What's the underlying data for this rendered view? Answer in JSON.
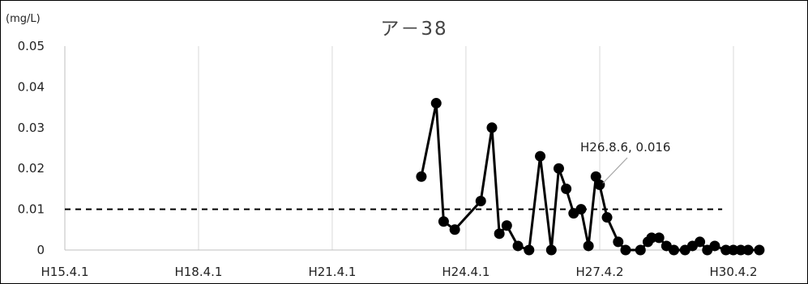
{
  "chart_data": {
    "type": "line",
    "title": "ア－38",
    "unit_label": "(mg/L)",
    "xlabel": "",
    "ylabel": "",
    "ylim": [
      0,
      0.05
    ],
    "y_ticks": [
      "0",
      "0.01",
      "0.02",
      "0.03",
      "0.04",
      "0.05"
    ],
    "xlim": [
      "H15.4.1",
      "H30.4.2"
    ],
    "x_ticks": [
      "H15.4.1",
      "H18.4.1",
      "H21.4.1",
      "H24.4.1",
      "H27.4.2",
      "H30.4.2"
    ],
    "grid": "vertical",
    "reference_line": {
      "value": 0.01,
      "from": "H15.4",
      "to": "H30.1",
      "style": "dashed"
    },
    "series": [
      {
        "color": "#000000",
        "points": [
          {
            "x": "H23.4",
            "y": 0.018
          },
          {
            "x": "H23.8",
            "y": 0.036
          },
          {
            "x": "H23.10",
            "y": 0.007
          },
          {
            "x": "H24.1",
            "y": 0.005
          },
          {
            "x": "H24.8",
            "y": 0.012
          },
          {
            "x": "H24.11",
            "y": 0.03
          },
          {
            "x": "H25.1",
            "y": 0.004
          },
          {
            "x": "H25.3",
            "y": 0.006
          },
          {
            "x": "H25.6",
            "y": 0.001
          },
          {
            "x": "H25.9",
            "y": 0.0
          },
          {
            "x": "H25.12",
            "y": 0.023
          },
          {
            "x": "H26.3",
            "y": 0.0
          },
          {
            "x": "H26.5",
            "y": 0.02
          },
          {
            "x": "H26.7",
            "y": 0.015
          },
          {
            "x": "H26.9",
            "y": 0.009
          },
          {
            "x": "H26.11",
            "y": 0.01
          },
          {
            "x": "H27.1",
            "y": 0.001
          },
          {
            "x": "H27.3",
            "y": 0.018
          },
          {
            "x": "H27.4",
            "y": 0.016
          },
          {
            "x": "H27.6",
            "y": 0.008
          },
          {
            "x": "H27.9",
            "y": 0.002
          },
          {
            "x": "H27.11",
            "y": 0.0
          },
          {
            "x": "H28.3",
            "y": 0.0
          },
          {
            "x": "H28.5",
            "y": 0.002
          },
          {
            "x": "H28.6",
            "y": 0.003
          },
          {
            "x": "H28.8",
            "y": 0.003
          },
          {
            "x": "H28.10",
            "y": 0.001
          },
          {
            "x": "H28.12",
            "y": 0.0
          },
          {
            "x": "H29.3",
            "y": 0.0
          },
          {
            "x": "H29.5",
            "y": 0.001
          },
          {
            "x": "H29.7",
            "y": 0.002
          },
          {
            "x": "H29.9",
            "y": 0.0
          },
          {
            "x": "H29.11",
            "y": 0.001
          },
          {
            "x": "H30.2",
            "y": 0.0
          },
          {
            "x": "H30.4",
            "y": 0.0
          },
          {
            "x": "H30.6",
            "y": 0.0
          },
          {
            "x": "H30.8",
            "y": 0.0
          },
          {
            "x": "H30.11",
            "y": 0.0
          }
        ]
      }
    ],
    "annotations": [
      {
        "label": "H26.8.6, 0.016",
        "x": "H27.4",
        "y": 0.016
      }
    ]
  }
}
